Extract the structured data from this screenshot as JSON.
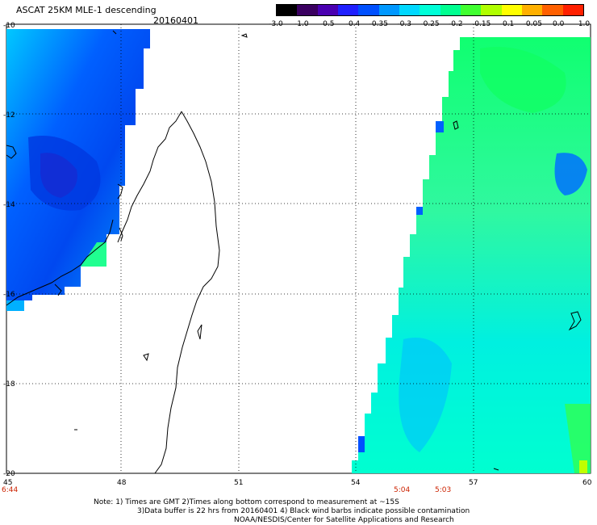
{
  "header": {
    "title": "ASCAT 25KM MLE-1 descending",
    "date": "20160401"
  },
  "colorbar": {
    "labels": [
      "-3.0",
      "-1.0",
      "-0.5",
      "-0.4",
      "-0.35",
      "-0.3",
      "-0.25",
      "-0.2",
      "-0.15",
      "-0.1",
      "-0.05",
      "0.0",
      "1.0"
    ],
    "colors": [
      "#000000",
      "#3a0060",
      "#4a00b0",
      "#2020ff",
      "#0050ff",
      "#0098ff",
      "#00d8ff",
      "#00ffd8",
      "#00ff90",
      "#40ff30",
      "#b0ff00",
      "#ffff00",
      "#ffb000",
      "#ff6000",
      "#ff2000"
    ]
  },
  "axes": {
    "lon_ticks": [
      "45",
      "48",
      "51",
      "54",
      "57",
      "60"
    ],
    "lat_ticks": [
      "-10",
      "-12",
      "-14",
      "-16",
      "-18",
      "-20"
    ]
  },
  "times": [
    "6:44",
    "5:04",
    "5:03"
  ],
  "notes": {
    "line1": "Note: 1) Times are GMT 2)Times along bottom correspond to measurement at ~15S",
    "line2": "3)Data buffer is 22 hrs from 20160401 4) Black wind barbs indicate possible contamination",
    "line3": "NOAA/NESDIS/Center for Satellite Applications and Research"
  }
}
